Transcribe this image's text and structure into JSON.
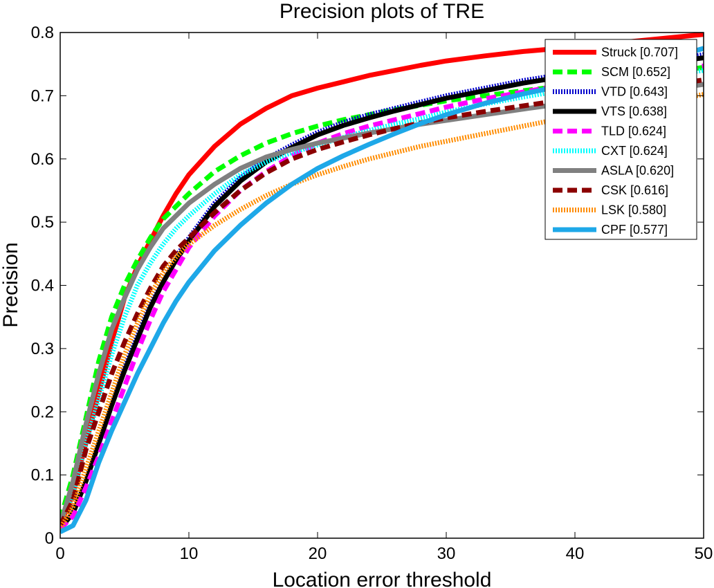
{
  "chart_data": {
    "type": "line",
    "title": "Precision plots of TRE",
    "xlabel": "Location error threshold",
    "ylabel": "Precision",
    "xlim": [
      0,
      50
    ],
    "ylim": [
      0,
      0.8
    ],
    "xticks": [
      0,
      10,
      20,
      30,
      40,
      50
    ],
    "yticks": [
      0,
      0.1,
      0.2,
      0.3,
      0.4,
      0.5,
      0.6,
      0.7,
      0.8
    ],
    "grid": false,
    "legend_position": "top-right",
    "x": [
      0,
      1,
      2,
      3,
      4,
      5,
      6,
      7,
      8,
      9,
      10,
      12,
      14,
      16,
      18,
      20,
      22,
      24,
      26,
      28,
      30,
      33,
      36,
      40,
      45,
      50
    ],
    "series": [
      {
        "name": "Struck [0.707]",
        "color": "#ff0000",
        "style": "solid",
        "values": [
          0.02,
          0.07,
          0.15,
          0.23,
          0.31,
          0.38,
          0.43,
          0.47,
          0.51,
          0.545,
          0.575,
          0.62,
          0.655,
          0.68,
          0.7,
          0.712,
          0.722,
          0.732,
          0.74,
          0.748,
          0.755,
          0.763,
          0.77,
          0.777,
          0.787,
          0.797
        ]
      },
      {
        "name": "SCM [0.652]",
        "color": "#00ff00",
        "style": "dashed",
        "values": [
          0.03,
          0.1,
          0.19,
          0.28,
          0.35,
          0.4,
          0.44,
          0.475,
          0.505,
          0.525,
          0.545,
          0.58,
          0.605,
          0.625,
          0.64,
          0.652,
          0.662,
          0.67,
          0.678,
          0.685,
          0.692,
          0.7,
          0.708,
          0.718,
          0.73,
          0.745
        ]
      },
      {
        "name": "VTD [0.643]",
        "color": "#0000cc",
        "style": "dotted",
        "values": [
          0.015,
          0.04,
          0.09,
          0.15,
          0.21,
          0.27,
          0.32,
          0.37,
          0.41,
          0.445,
          0.475,
          0.53,
          0.57,
          0.6,
          0.622,
          0.642,
          0.658,
          0.67,
          0.68,
          0.69,
          0.7,
          0.712,
          0.724,
          0.737,
          0.75,
          0.765
        ]
      },
      {
        "name": "VTS [0.638]",
        "color": "#000000",
        "style": "solid",
        "values": [
          0.015,
          0.04,
          0.09,
          0.15,
          0.21,
          0.265,
          0.315,
          0.365,
          0.405,
          0.44,
          0.47,
          0.525,
          0.565,
          0.595,
          0.618,
          0.638,
          0.653,
          0.665,
          0.676,
          0.686,
          0.696,
          0.708,
          0.72,
          0.733,
          0.747,
          0.76
        ]
      },
      {
        "name": "TLD [0.624]",
        "color": "#ff00ff",
        "style": "dashed",
        "values": [
          0.015,
          0.035,
          0.08,
          0.13,
          0.185,
          0.24,
          0.295,
          0.345,
          0.39,
          0.425,
          0.46,
          0.51,
          0.55,
          0.58,
          0.605,
          0.625,
          0.64,
          0.652,
          0.662,
          0.672,
          0.682,
          0.695,
          0.706,
          0.72,
          0.733,
          0.747
        ]
      },
      {
        "name": "CXT [0.624]",
        "color": "#00ffff",
        "style": "dotted",
        "values": [
          0.02,
          0.07,
          0.15,
          0.22,
          0.29,
          0.35,
          0.4,
          0.435,
          0.465,
          0.49,
          0.51,
          0.545,
          0.575,
          0.595,
          0.61,
          0.622,
          0.634,
          0.645,
          0.655,
          0.664,
          0.674,
          0.687,
          0.698,
          0.712,
          0.727,
          0.74
        ]
      },
      {
        "name": "ASLA [0.620]",
        "color": "#808080",
        "style": "solid",
        "values": [
          0.02,
          0.09,
          0.18,
          0.26,
          0.33,
          0.38,
          0.425,
          0.46,
          0.49,
          0.51,
          0.53,
          0.56,
          0.585,
          0.603,
          0.615,
          0.625,
          0.633,
          0.641,
          0.648,
          0.655,
          0.661,
          0.67,
          0.679,
          0.69,
          0.703,
          0.718
        ]
      },
      {
        "name": "CSK [0.616]",
        "color": "#8b0000",
        "style": "dashed",
        "values": [
          0.02,
          0.06,
          0.14,
          0.2,
          0.26,
          0.31,
          0.355,
          0.395,
          0.43,
          0.455,
          0.475,
          0.515,
          0.55,
          0.578,
          0.6,
          0.615,
          0.627,
          0.638,
          0.648,
          0.657,
          0.665,
          0.675,
          0.684,
          0.696,
          0.71,
          0.725
        ]
      },
      {
        "name": "LSK [0.580]",
        "color": "#ff8c00",
        "style": "dotted",
        "values": [
          0.015,
          0.05,
          0.11,
          0.17,
          0.23,
          0.29,
          0.34,
          0.385,
          0.42,
          0.445,
          0.465,
          0.495,
          0.52,
          0.542,
          0.56,
          0.575,
          0.588,
          0.6,
          0.61,
          0.62,
          0.628,
          0.64,
          0.652,
          0.668,
          0.685,
          0.702
        ]
      },
      {
        "name": "CPF [0.577]",
        "color": "#1ea8e8",
        "style": "solid",
        "values": [
          0.01,
          0.02,
          0.06,
          0.12,
          0.17,
          0.215,
          0.26,
          0.3,
          0.34,
          0.375,
          0.405,
          0.455,
          0.495,
          0.53,
          0.56,
          0.585,
          0.605,
          0.623,
          0.64,
          0.656,
          0.67,
          0.688,
          0.703,
          0.72,
          0.745,
          0.775
        ]
      }
    ]
  }
}
